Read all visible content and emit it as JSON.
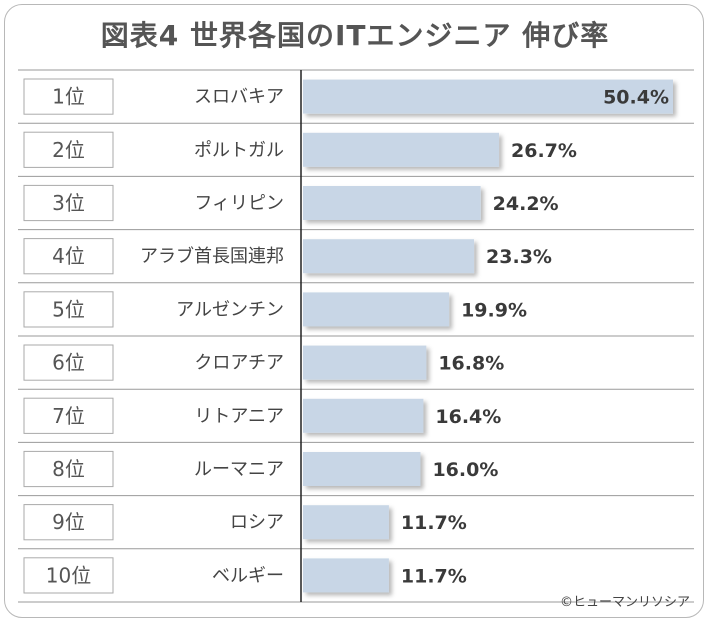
{
  "chart_data": {
    "type": "bar",
    "orientation": "horizontal",
    "title": "図表4 世界各国のITエンジニア 伸び率",
    "ranks": [
      "1位",
      "2位",
      "3位",
      "4位",
      "5位",
      "6位",
      "7位",
      "8位",
      "9位",
      "10位"
    ],
    "categories": [
      "スロバキア",
      "ポルトガル",
      "フィリピン",
      "アラブ首長国連邦",
      "アルゼンチン",
      "クロアチア",
      "リトアニア",
      "ルーマニア",
      "ロシア",
      "ベルギー"
    ],
    "values": [
      50.4,
      26.7,
      24.2,
      23.3,
      19.9,
      16.8,
      16.4,
      16.0,
      11.7,
      11.7
    ],
    "value_labels": [
      "50.4%",
      "26.7%",
      "24.2%",
      "23.3%",
      "19.9%",
      "16.8%",
      "16.4%",
      "16.0%",
      "11.7%",
      "11.7%"
    ],
    "unit": "%",
    "xlim": [
      0,
      50.4
    ],
    "grid": false,
    "bar_color": "#c8d6e6"
  },
  "credit": "©ヒューマンリソシア"
}
